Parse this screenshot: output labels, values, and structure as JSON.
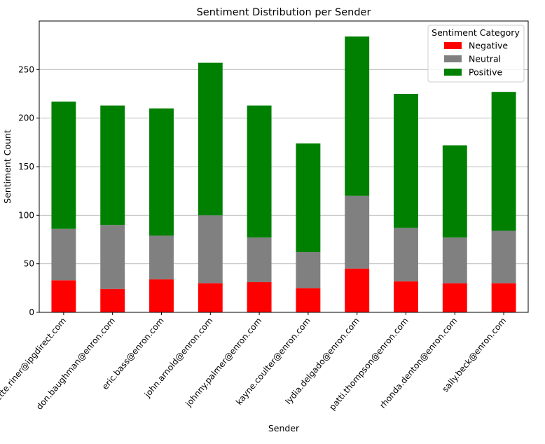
{
  "chart_data": {
    "type": "bar",
    "stacked": true,
    "title": "Sentiment Distribution per Sender",
    "xlabel": "Sender",
    "ylabel": "Sentiment Count",
    "ylim": [
      0,
      300
    ],
    "yticks": [
      0,
      50,
      100,
      150,
      200,
      250
    ],
    "grid": "horizontal",
    "legend": {
      "title": "Sentiment Category",
      "placement": "top-right"
    },
    "categories": [
      "bobette.riner@ipgdirect.com",
      "don.baughman@enron.com",
      "eric.bass@enron.com",
      "john.arnold@enron.com",
      "johnny.palmer@enron.com",
      "kayne.coulter@enron.com",
      "lydia.delgado@enron.com",
      "patti.thompson@enron.com",
      "rhonda.denton@enron.com",
      "sally.beck@enron.com"
    ],
    "series": [
      {
        "name": "Negative",
        "color": "#ff0000",
        "values": [
          33,
          24,
          34,
          30,
          31,
          25,
          45,
          32,
          30,
          30
        ]
      },
      {
        "name": "Neutral",
        "color": "#808080",
        "values": [
          53,
          66,
          45,
          70,
          46,
          37,
          75,
          55,
          47,
          54
        ]
      },
      {
        "name": "Positive",
        "color": "#008000",
        "values": [
          131,
          123,
          131,
          157,
          136,
          112,
          164,
          138,
          95,
          143
        ]
      }
    ]
  }
}
